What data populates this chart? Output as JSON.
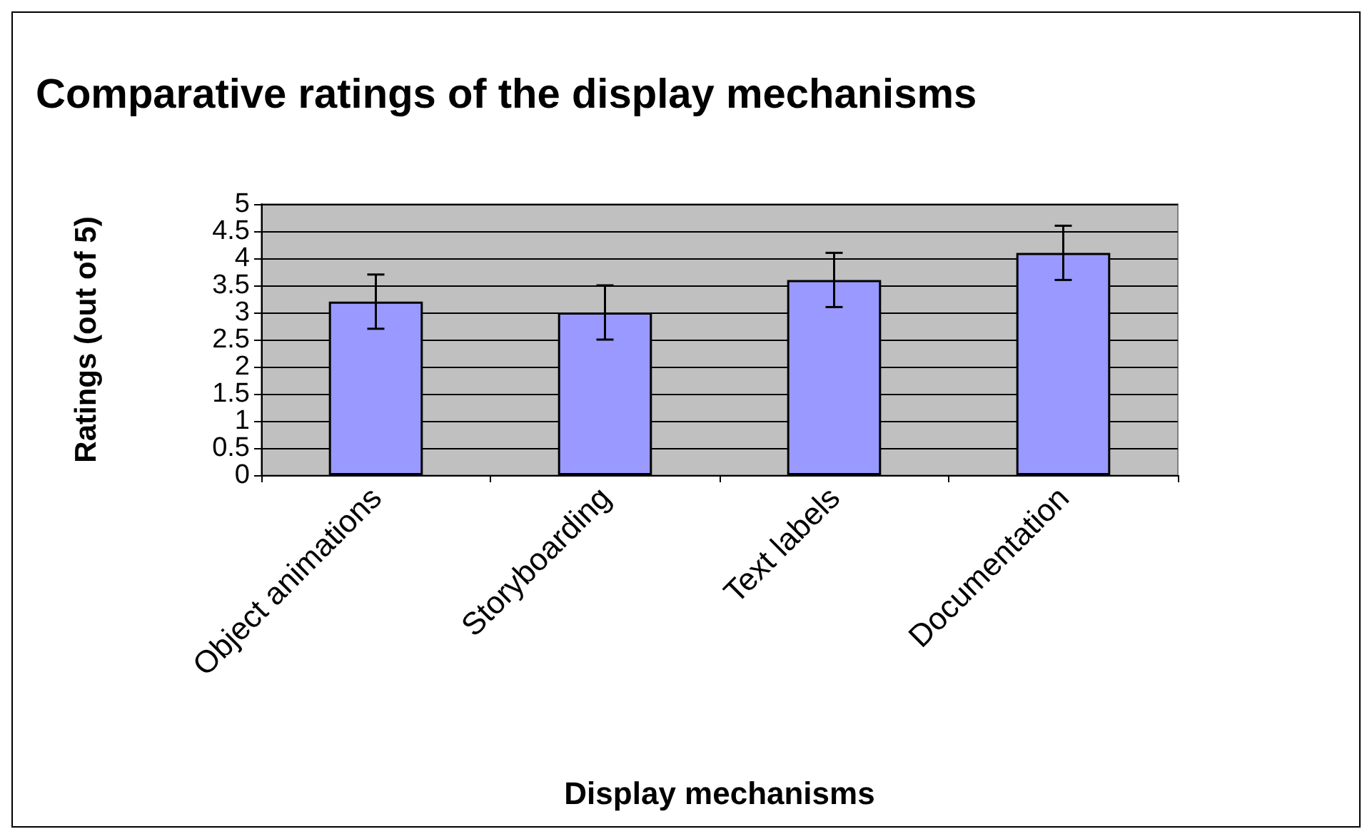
{
  "chart_data": {
    "type": "bar",
    "title": "Comparative ratings of the display mechanisms",
    "xlabel": "Display mechanisms",
    "ylabel": "Ratings (out of 5)",
    "categories": [
      "Object animations",
      "Storyboarding",
      "Text labels",
      "Documentation"
    ],
    "values": [
      3.2,
      3.0,
      3.6,
      4.1
    ],
    "errors": [
      0.5,
      0.5,
      0.5,
      0.5
    ],
    "color": "#9999ff",
    "ylim": [
      0,
      5
    ],
    "yticks": [
      0,
      0.5,
      1,
      1.5,
      2,
      2.5,
      3,
      3.5,
      4,
      4.5,
      5
    ],
    "grid": "y"
  }
}
